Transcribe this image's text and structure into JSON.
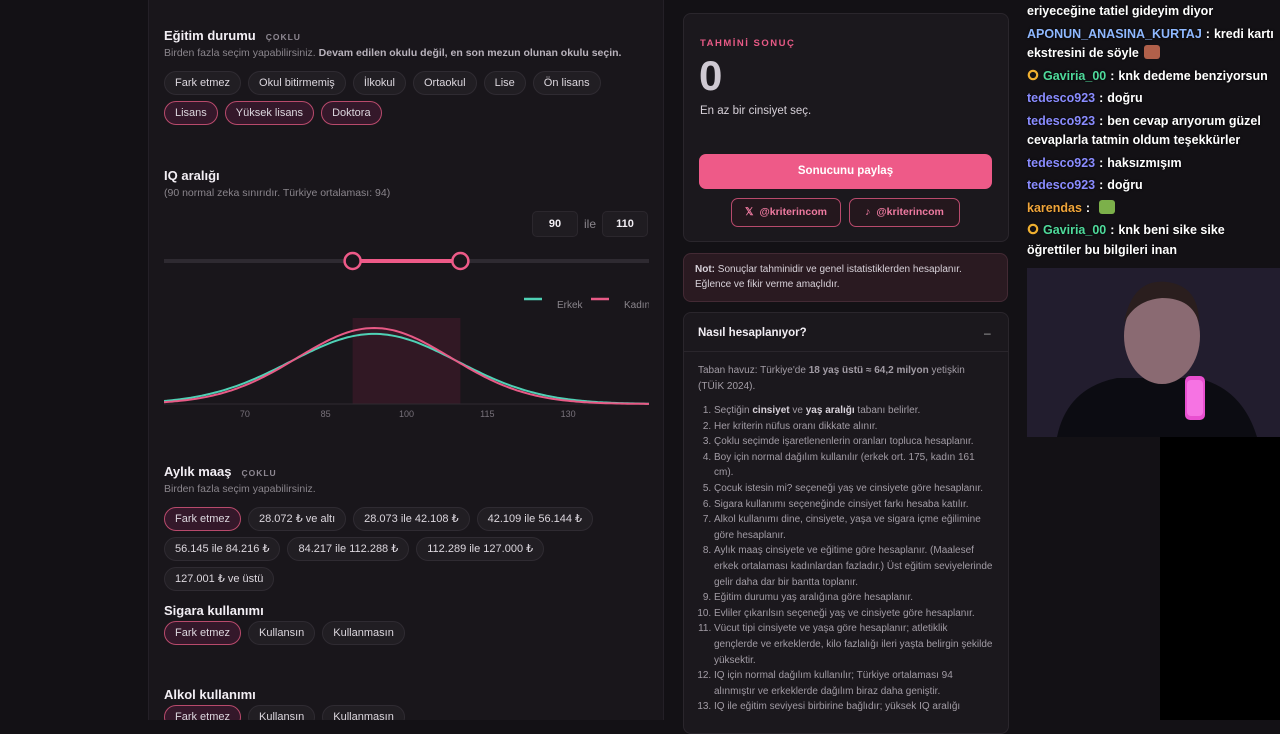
{
  "education": {
    "title": "Eğitim durumu",
    "tag": "ÇOKLU",
    "desc": [
      {
        "text": "Birden fazla seçim yapabilirsiniz. "
      },
      {
        "text": "Devam edilen okulu değil, en son mezun olunan okulu seçin.",
        "bold": true
      }
    ],
    "options": [
      {
        "label": "Fark etmez",
        "selected": false
      },
      {
        "label": "Okul bitirmemiş",
        "selected": false
      },
      {
        "label": "İlkokul",
        "selected": false
      },
      {
        "label": "Ortaokul",
        "selected": false
      },
      {
        "label": "Lise",
        "selected": false
      },
      {
        "label": "Ön lisans",
        "selected": false
      },
      {
        "label": "Lisans",
        "selected": true
      },
      {
        "label": "Yüksek lisans",
        "selected": true
      },
      {
        "label": "Doktora",
        "selected": true
      }
    ]
  },
  "iq": {
    "title": "IQ aralığı",
    "desc": "(90 normal zeka sınırıdır. Türkiye ortalaması: 94)",
    "range": [
      90,
      110
    ],
    "between": "ile",
    "chart": {
      "type": "line",
      "xlim": [
        55,
        145
      ],
      "xticks": [
        70,
        85,
        100,
        115,
        130
      ],
      "legend": "top-right",
      "series": [
        {
          "name": "Erkek",
          "color": "#4fd1b5",
          "mean": 94,
          "sd": 15.5
        },
        {
          "name": "Kadın",
          "color": "#e85a86",
          "mean": 94,
          "sd": 14.3
        }
      ]
    }
  },
  "salary": {
    "title": "Aylık maaş",
    "tag": "ÇOKLU",
    "desc": [
      {
        "text": "Birden fazla seçim yapabilirsiniz."
      }
    ],
    "options": [
      {
        "label": "Fark etmez",
        "selected": true
      },
      {
        "label": "28.072 ₺ ve altı",
        "selected": false
      },
      {
        "label": "28.073 ile 42.108 ₺",
        "selected": false
      },
      {
        "label": "42.109 ile 56.144 ₺",
        "selected": false
      },
      {
        "label": "56.145 ile 84.216 ₺",
        "selected": false
      },
      {
        "label": "84.217 ile 112.288 ₺",
        "selected": false
      },
      {
        "label": "112.289 ile 127.000 ₺",
        "selected": false
      },
      {
        "label": "127.001 ₺ ve üstü",
        "selected": false
      }
    ]
  },
  "smoking": {
    "title": "Sigara kullanımı",
    "options": [
      {
        "label": "Fark etmez",
        "selected": true
      },
      {
        "label": "Kullansın",
        "selected": false
      },
      {
        "label": "Kullanmasın",
        "selected": false
      }
    ]
  },
  "alcohol": {
    "title": "Alkol kullanımı",
    "options": [
      {
        "label": "Fark etmez",
        "selected": true
      },
      {
        "label": "Kullansın",
        "selected": false
      },
      {
        "label": "Kullanmasın",
        "selected": false
      }
    ]
  },
  "result": {
    "label": "TAHMİNİ SONUÇ",
    "value": "0",
    "hint": "En az bir cinsiyet seç.",
    "share": "Sonucunu paylaş",
    "social": [
      "@kriterincom",
      "@kriterincom"
    ]
  },
  "note": [
    {
      "text": "Not:",
      "bold": true
    },
    {
      "text": " Sonuçlar tahminidir ve genel istatistiklerden hesaplanır. Eğlence ve fikir verme amaçlıdır."
    }
  ],
  "how": {
    "title": "Nasıl hesaplanıyor?",
    "toggle": "–",
    "intro": [
      {
        "text": "Taban havuz: Türkiye'de "
      },
      {
        "text": "18 yaş üstü ≈ 64,2 milyon",
        "bold": true
      },
      {
        "text": " yetişkin (TÜİK 2024)."
      }
    ],
    "items": [
      [
        {
          "text": "Seçtiğin "
        },
        {
          "text": "cinsiyet",
          "bold": true
        },
        {
          "text": " ve "
        },
        {
          "text": "yaş aralığı",
          "bold": true
        },
        {
          "text": " tabanı belirler."
        }
      ],
      [
        {
          "text": "Her kriterin nüfus oranı dikkate alınır."
        }
      ],
      [
        {
          "text": "Çoklu seçimde işaretlenenlerin oranları topluca hesaplanır."
        }
      ],
      [
        {
          "text": "Boy için normal dağılım kullanılır (erkek ort. 175, kadın 161 cm)."
        }
      ],
      [
        {
          "text": "Çocuk istesin mi? seçeneği yaş ve cinsiyete göre hesaplanır."
        }
      ],
      [
        {
          "text": "Sigara kullanımı seçeneğinde cinsiyet farkı hesaba katılır."
        }
      ],
      [
        {
          "text": "Alkol kullanımı dine, cinsiyete, yaşa ve sigara içme eğilimine göre hesaplanır."
        }
      ],
      [
        {
          "text": "Aylık maaş cinsiyete ve eğitime göre hesaplanır. (Maalesef erkek ortalaması kadınlardan fazladır.) Üst eğitim seviyelerinde gelir daha dar bir bantta toplanır."
        }
      ],
      [
        {
          "text": "Eğitim durumu yaş aralığına göre hesaplanır."
        }
      ],
      [
        {
          "text": "Evliler çıkarılsın seçeneği yaş ve cinsiyete göre hesaplanır."
        }
      ],
      [
        {
          "text": "Vücut tipi cinsiyete ve yaşa göre hesaplanır; atletiklik gençlerde ve erkeklerde, kilo fazlalığı ileri yaşta belirgin şekilde yüksektir."
        }
      ],
      [
        {
          "text": "IQ için normal dağılım kullanılır; Türkiye ortalaması 94 alınmıştır ve erkeklerde dağılım biraz daha geniştir."
        }
      ],
      [
        {
          "text": "IQ ile eğitim seviyesi birbirine bağlıdır; yüksek IQ aralığı"
        }
      ]
    ]
  },
  "chat": {
    "separator": ":",
    "messages": [
      {
        "text": "eriyeceğine tatiel gideyim diyor"
      },
      {
        "user": "APONUN_ANASINA_KURTAJ",
        "color": "#8fb8ff",
        "text": "kredi kartı ekstresini de söyle",
        "emote": true
      },
      {
        "user": "Gaviria_00",
        "color": "#4fdb9c",
        "text": "knk dedeme benziyorsun",
        "badge": true
      },
      {
        "user": "tedesco923",
        "color": "#8a8cff",
        "text": "doğru"
      },
      {
        "user": "tedesco923",
        "color": "#8a8cff",
        "text": "ben cevap arıyorum güzel cevaplarla tatmin oldum teşekkürler"
      },
      {
        "user": "tedesco923",
        "color": "#8a8cff",
        "text": "haksızmışım"
      },
      {
        "user": "tedesco923",
        "color": "#8a8cff",
        "text": "doğru"
      },
      {
        "user": "karendas",
        "color": "#f0a53a",
        "emote": true
      },
      {
        "user": "Gaviria_00",
        "color": "#4fdb9c",
        "text": "knk beni sike sike öğrettiler bu bilgileri inan",
        "badge": true
      }
    ]
  }
}
